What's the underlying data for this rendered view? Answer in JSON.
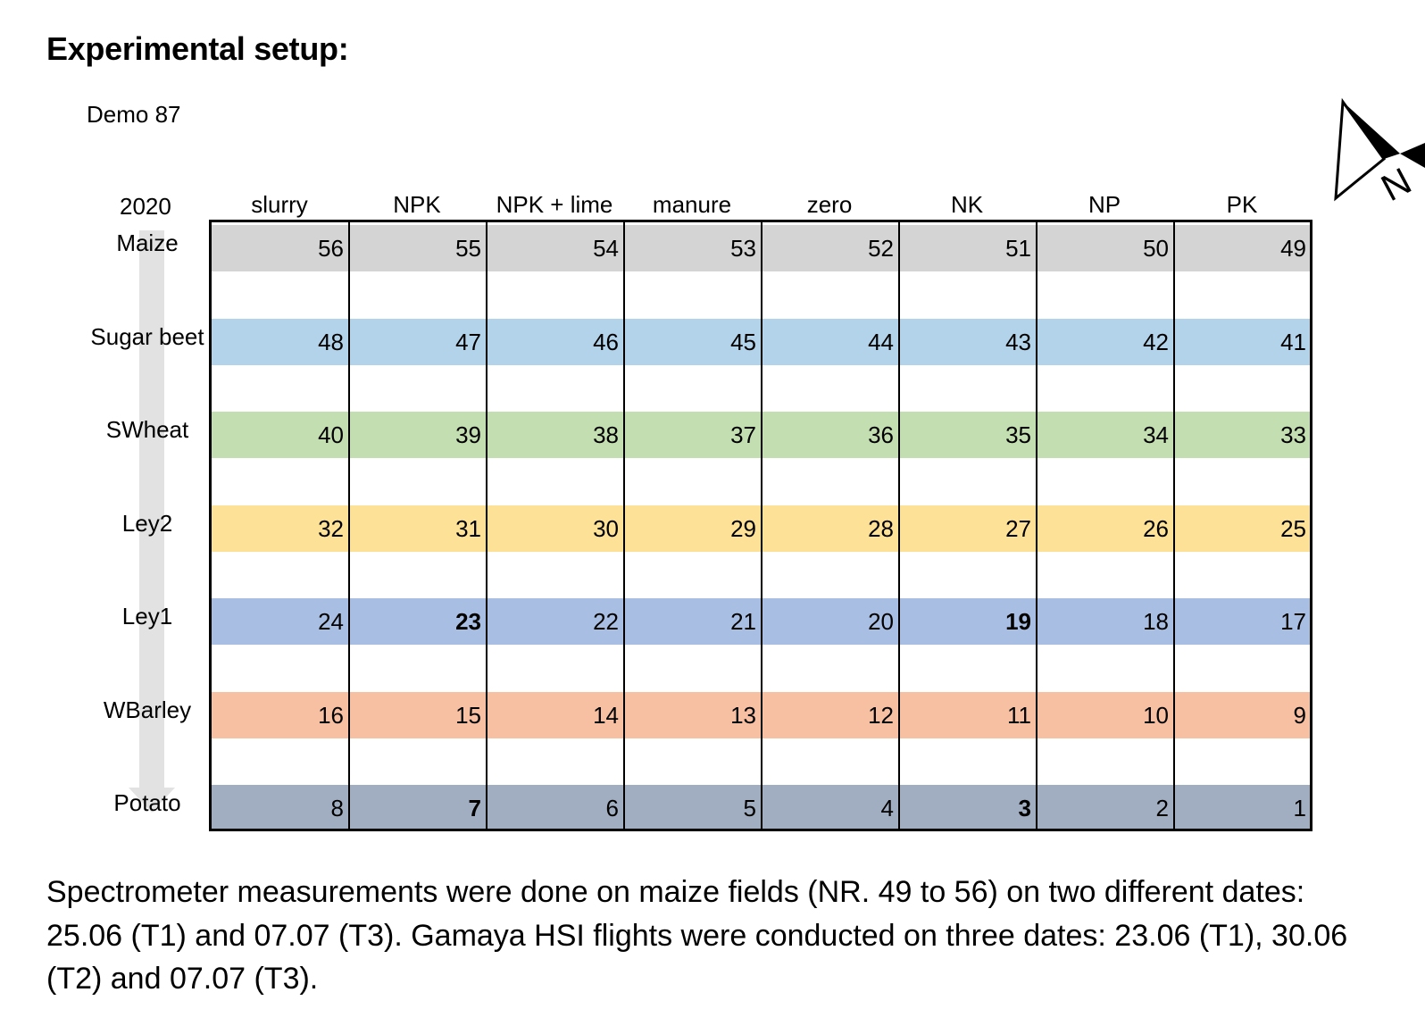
{
  "heading": "Experimental setup:",
  "demo_label": "Demo 87",
  "year_label": "2020",
  "columns": [
    "slurry",
    "NPK",
    "NPK + lime",
    "manure",
    "zero",
    "NK",
    "NP",
    "PK"
  ],
  "rows": [
    {
      "crop": "Maize",
      "color": "#d4d4d4",
      "plots": [
        "56",
        "55",
        "54",
        "53",
        "52",
        "51",
        "50",
        "49"
      ],
      "bold": []
    },
    {
      "crop": "Sugar beet",
      "color": "#b3d3ea",
      "plots": [
        "48",
        "47",
        "46",
        "45",
        "44",
        "43",
        "42",
        "41"
      ],
      "bold": []
    },
    {
      "crop": "SWheat",
      "color": "#c3deb0",
      "plots": [
        "40",
        "39",
        "38",
        "37",
        "36",
        "35",
        "34",
        "33"
      ],
      "bold": []
    },
    {
      "crop": "Ley2",
      "color": "#fde197",
      "plots": [
        "32",
        "31",
        "30",
        "29",
        "28",
        "27",
        "26",
        "25"
      ],
      "bold": []
    },
    {
      "crop": "Ley1",
      "color": "#a9bee3",
      "plots": [
        "24",
        "23",
        "22",
        "21",
        "20",
        "19",
        "18",
        "17"
      ],
      "bold": [
        "23",
        "19"
      ]
    },
    {
      "crop": "WBarley",
      "color": "#f8c0a3",
      "plots": [
        "16",
        "15",
        "14",
        "13",
        "12",
        "11",
        "10",
        "9"
      ],
      "bold": []
    },
    {
      "crop": "Potato",
      "color": "#a1aec1",
      "plots": [
        "8",
        "7",
        "6",
        "5",
        "4",
        "3",
        "2",
        "1"
      ],
      "bold": [
        "7",
        "3"
      ]
    }
  ],
  "north_label": "N",
  "caption": "Spectrometer measurements were done on maize fields (NR. 49 to 56) on two different dates: 25.06 (T1) and 07.07 (T3). Gamaya HSI flights were conducted on three dates: 23.06 (T1), 30.06 (T2) and 07.07 (T3)."
}
